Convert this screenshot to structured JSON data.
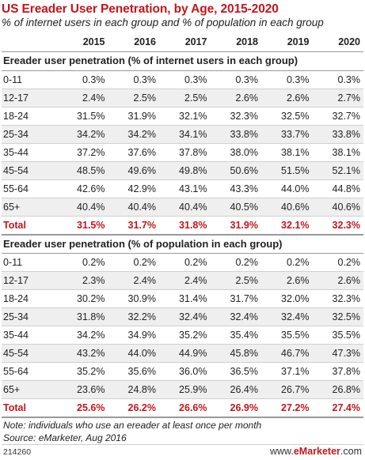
{
  "title": "US Ereader User Penetration, by Age, 2015-2020",
  "subtitle": "% of internet users in each group and % of population in each group",
  "chart_data": {
    "type": "table",
    "columns": [
      "",
      "2015",
      "2016",
      "2017",
      "2018",
      "2019",
      "2020"
    ],
    "sections": [
      {
        "heading": "Ereader user penetration (% of internet users in each group)",
        "rows": [
          {
            "label": "0-11",
            "values": [
              "0.3%",
              "0.3%",
              "0.3%",
              "0.3%",
              "0.3%",
              "0.3%"
            ]
          },
          {
            "label": "12-17",
            "values": [
              "2.4%",
              "2.5%",
              "2.5%",
              "2.6%",
              "2.6%",
              "2.7%"
            ]
          },
          {
            "label": "18-24",
            "values": [
              "31.5%",
              "31.9%",
              "32.1%",
              "32.3%",
              "32.5%",
              "32.7%"
            ]
          },
          {
            "label": "25-34",
            "values": [
              "34.2%",
              "34.2%",
              "34.1%",
              "33.8%",
              "33.7%",
              "33.8%"
            ]
          },
          {
            "label": "35-44",
            "values": [
              "37.2%",
              "37.6%",
              "37.8%",
              "38.0%",
              "38.1%",
              "38.1%"
            ]
          },
          {
            "label": "45-54",
            "values": [
              "48.5%",
              "49.6%",
              "49.8%",
              "50.6%",
              "51.5%",
              "52.1%"
            ]
          },
          {
            "label": "55-64",
            "values": [
              "42.6%",
              "42.9%",
              "43.1%",
              "43.3%",
              "44.0%",
              "44.8%"
            ]
          },
          {
            "label": "65+",
            "values": [
              "40.4%",
              "40.4%",
              "40.4%",
              "40.5%",
              "40.6%",
              "40.6%"
            ]
          }
        ],
        "total": {
          "label": "Total",
          "values": [
            "31.5%",
            "31.7%",
            "31.8%",
            "31.9%",
            "32.1%",
            "32.3%"
          ]
        }
      },
      {
        "heading": "Ereader user penetration (% of population in each group)",
        "rows": [
          {
            "label": "0-11",
            "values": [
              "0.2%",
              "0.2%",
              "0.2%",
              "0.2%",
              "0.2%",
              "0.2%"
            ]
          },
          {
            "label": "12-17",
            "values": [
              "2.3%",
              "2.4%",
              "2.4%",
              "2.5%",
              "2.6%",
              "2.6%"
            ]
          },
          {
            "label": "18-24",
            "values": [
              "30.2%",
              "30.9%",
              "31.4%",
              "31.7%",
              "32.0%",
              "32.3%"
            ]
          },
          {
            "label": "25-34",
            "values": [
              "31.8%",
              "32.2%",
              "32.4%",
              "32.4%",
              "32.4%",
              "32.5%"
            ]
          },
          {
            "label": "35-44",
            "values": [
              "34.2%",
              "34.9%",
              "35.2%",
              "35.4%",
              "35.5%",
              "35.5%"
            ]
          },
          {
            "label": "45-54",
            "values": [
              "43.2%",
              "44.0%",
              "44.9%",
              "45.8%",
              "46.7%",
              "47.3%"
            ]
          },
          {
            "label": "55-64",
            "values": [
              "35.2%",
              "35.6%",
              "36.0%",
              "36.5%",
              "37.1%",
              "37.8%"
            ]
          },
          {
            "label": "65+",
            "values": [
              "23.6%",
              "24.8%",
              "25.9%",
              "26.4%",
              "26.7%",
              "26.8%"
            ]
          }
        ],
        "total": {
          "label": "Total",
          "values": [
            "25.6%",
            "26.2%",
            "26.6%",
            "26.9%",
            "27.2%",
            "27.4%"
          ]
        }
      }
    ]
  },
  "note": "Note: individuals who use an ereader at least once per month",
  "source": "Source: eMarketer, Aug 2016",
  "footer": {
    "id": "214260",
    "brand_prefix": "www.",
    "brand_name": "eMarketer",
    "brand_suffix": ".com"
  },
  "colors": {
    "accent": "#c4161c",
    "band": "#efefef"
  }
}
